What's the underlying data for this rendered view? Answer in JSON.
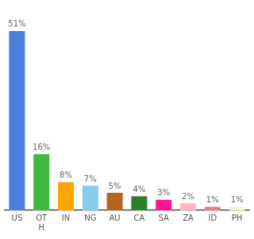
{
  "chart_data": {
    "type": "bar",
    "categories": [
      "US",
      "OT\nH",
      "IN",
      "NG",
      "AU",
      "CA",
      "SA",
      "ZA",
      "ID",
      "PH"
    ],
    "values": [
      51,
      16,
      8,
      7,
      5,
      4,
      3,
      2,
      1,
      1
    ],
    "value_labels": [
      "51%",
      "16%",
      "8%",
      "7%",
      "5%",
      "4%",
      "3%",
      "2%",
      "1%",
      "1%"
    ],
    "colors": [
      "#4d7fdc",
      "#3dba3d",
      "#ffa500",
      "#87ceeb",
      "#b5651d",
      "#2d7d2d",
      "#ff1493",
      "#ffb6c1",
      "#e88080",
      "#f5f5c8"
    ],
    "ylim": [
      0,
      58
    ],
    "data_labels": true,
    "tick_labels": "x",
    "grid": false
  }
}
